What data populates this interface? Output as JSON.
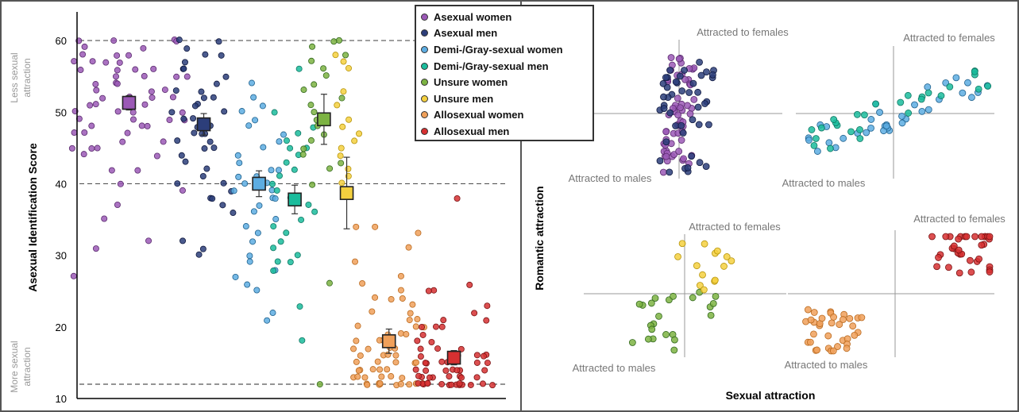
{
  "chart_data": [
    {
      "type": "scatter",
      "panel": "left",
      "ylabel": "Asexual Identification Score",
      "y_top_note": "Less sexual attraction",
      "y_bottom_note": "More sexual attraction",
      "yticks": [
        10,
        20,
        30,
        40,
        50,
        60
      ],
      "ylim": [
        10,
        64
      ],
      "reference_lines": [
        60,
        40,
        12
      ],
      "grid": false,
      "legend_position": "top-right",
      "series": [
        {
          "name": "Asexual women",
          "color": "#9b59b6",
          "edge": "#5b2c6f",
          "mean": 51.3,
          "err": 1.0,
          "x_center": 1,
          "spread": 0.9,
          "y_points": [
            60,
            60,
            60,
            60,
            59,
            59,
            58,
            58,
            58,
            57,
            57,
            57,
            57,
            56,
            56,
            56,
            56,
            55,
            55,
            55,
            55,
            54,
            54,
            54,
            53,
            53,
            53,
            52,
            52,
            52,
            52,
            51,
            51,
            51,
            50,
            50,
            50,
            50,
            49,
            49,
            49,
            49,
            48,
            48,
            48,
            47,
            47,
            47,
            46,
            46,
            45,
            45,
            45,
            44,
            44,
            42,
            42,
            40,
            39,
            37,
            35,
            32,
            31,
            27
          ]
        },
        {
          "name": "Asexual men",
          "color": "#2c3e7a",
          "edge": "#111a40",
          "mean": 48.3,
          "err": 1.5,
          "x_center": 2.15,
          "spread": 0.5,
          "y_points": [
            60,
            60,
            59,
            58,
            58,
            57,
            56,
            56,
            55,
            54,
            53,
            53,
            52,
            52,
            51,
            51,
            50,
            50,
            49,
            49,
            48,
            48,
            48,
            47,
            47,
            47,
            46,
            46,
            45,
            45,
            44,
            43,
            42,
            41,
            40,
            40,
            39,
            38,
            38,
            37,
            36,
            31,
            30,
            32
          ]
        },
        {
          "name": "Demi-/Gray-sexual women",
          "color": "#5dade2",
          "edge": "#1f618d",
          "mean": 40.0,
          "err": 1.8,
          "x_center": 3.0,
          "spread": 0.4,
          "y_points": [
            54,
            52,
            51,
            50,
            49,
            48,
            47,
            46,
            45,
            44,
            43,
            42,
            42,
            41,
            41,
            40,
            40,
            39,
            39,
            38,
            38,
            37,
            36,
            35,
            34,
            33,
            32,
            30,
            29,
            28,
            27,
            26,
            25,
            22,
            21
          ]
        },
        {
          "name": "Demi-/Gray-sexual men",
          "color": "#1abc9c",
          "edge": "#117864",
          "mean": 37.8,
          "err": 2.0,
          "x_center": 3.55,
          "spread": 0.35,
          "y_points": [
            56,
            50,
            48,
            47,
            46,
            45,
            45,
            44,
            43,
            42,
            41,
            40,
            39,
            38,
            37,
            36,
            35,
            34,
            33,
            32,
            31,
            30,
            29,
            29,
            28,
            23,
            18
          ]
        },
        {
          "name": "Unsure women",
          "color": "#7cb342",
          "edge": "#33691e",
          "mean": 49.0,
          "err": 3.5,
          "x_center": 4.0,
          "spread": 0.35,
          "y_points": [
            60,
            60,
            59,
            58,
            57,
            56,
            55,
            54,
            53,
            52,
            51,
            50,
            49,
            48,
            47,
            46,
            45,
            44,
            43,
            42,
            40,
            26,
            12
          ]
        },
        {
          "name": "Unsure men",
          "color": "#f4d03f",
          "edge": "#b7950b",
          "mean": 38.7,
          "err": 5.0,
          "x_center": 4.35,
          "spread": 0.2,
          "y_points": [
            58,
            57,
            56,
            53,
            51,
            49,
            48,
            47,
            46,
            45,
            44,
            42,
            41,
            40
          ]
        },
        {
          "name": "Allosexual women",
          "color": "#f0a05a",
          "edge": "#ba6a1f",
          "mean": 18.0,
          "err": 1.7,
          "x_center": 5.0,
          "spread": 0.55,
          "y_points": [
            34,
            34,
            33,
            31,
            29,
            27,
            26,
            25,
            24,
            24,
            24,
            23,
            22,
            22,
            21,
            21,
            20,
            20,
            20,
            19,
            19,
            19,
            18,
            18,
            18,
            17,
            17,
            17,
            17,
            16,
            16,
            16,
            16,
            15,
            15,
            15,
            15,
            15,
            14,
            14,
            14,
            14,
            14,
            13,
            13,
            13,
            13,
            13,
            13,
            12,
            12,
            12,
            12,
            12,
            12,
            12,
            12,
            12,
            12,
            12
          ]
        },
        {
          "name": "Allosexual men",
          "color": "#d63031",
          "edge": "#7b1213",
          "mean": 15.7,
          "err": 1.0,
          "x_center": 6.0,
          "spread": 0.6,
          "y_points": [
            38,
            26,
            25,
            25,
            23,
            22,
            21,
            21,
            20,
            20,
            20,
            19,
            18,
            18,
            17,
            17,
            17,
            16,
            16,
            16,
            16,
            16,
            15,
            15,
            15,
            15,
            15,
            15,
            14,
            14,
            14,
            14,
            14,
            14,
            14,
            13,
            13,
            13,
            13,
            13,
            13,
            13,
            13,
            12,
            12,
            12,
            12,
            12,
            12,
            12,
            12,
            12,
            12,
            12,
            12,
            12,
            12,
            12
          ]
        }
      ]
    },
    {
      "type": "scatter",
      "panel": "right",
      "xlabel": "Sexual attraction",
      "ylabel": "Romantic attraction",
      "quadrant_labels": {
        "female": "Attracted to females",
        "male": "Attracted to males"
      },
      "subplots": [
        {
          "series": [
            "Asexual women",
            "Asexual men"
          ]
        },
        {
          "series": [
            "Demi-/Gray-sexual women",
            "Demi-/Gray-sexual men"
          ]
        },
        {
          "series": [
            "Unsure women",
            "Unsure men"
          ]
        },
        {
          "series": [
            "Allosexual women",
            "Allosexual men"
          ]
        }
      ]
    }
  ]
}
